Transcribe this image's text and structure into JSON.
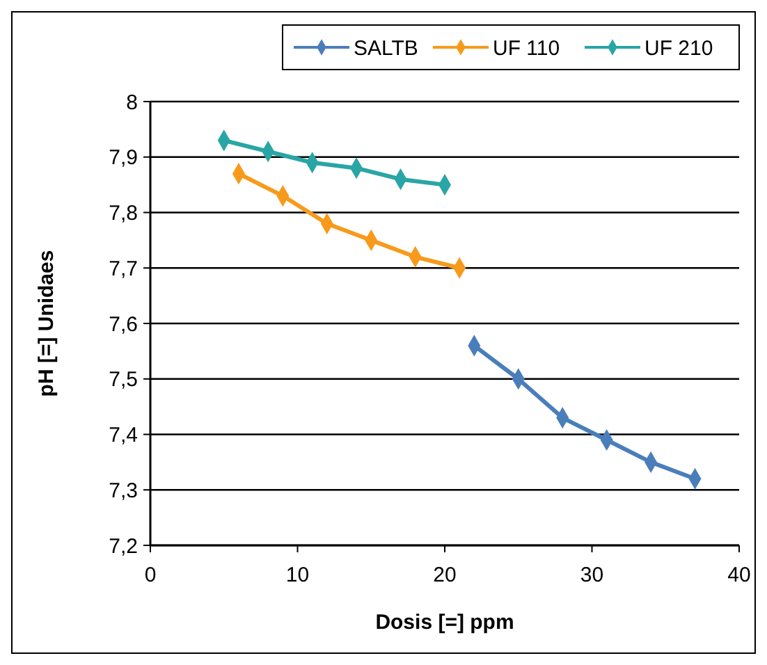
{
  "chart_data": {
    "type": "line",
    "xlabel": "Dosis [=] ppm",
    "ylabel": "pH [=] Unidaes",
    "xlim": [
      0,
      40
    ],
    "xticks": [
      0,
      10,
      20,
      30,
      40
    ],
    "ylim": [
      7.2,
      8
    ],
    "yticks": [
      {
        "value": 7.2,
        "label": "7,2"
      },
      {
        "value": 7.3,
        "label": "7,3"
      },
      {
        "value": 7.4,
        "label": "7,4"
      },
      {
        "value": 7.5,
        "label": "7,5"
      },
      {
        "value": 7.6,
        "label": "7,6"
      },
      {
        "value": 7.7,
        "label": "7,7"
      },
      {
        "value": 7.8,
        "label": "7,8"
      },
      {
        "value": 7.9,
        "label": "7,9"
      },
      {
        "value": 8,
        "label": "8"
      }
    ],
    "grid": "y",
    "legend": "top",
    "marker": "diamond",
    "line_style": "solid",
    "series": [
      {
        "name": "SALTB",
        "color": "#4a7ebb",
        "x": [
          22,
          25,
          28,
          31,
          34,
          37
        ],
        "values": [
          7.56,
          7.5,
          7.43,
          7.39,
          7.35,
          7.32
        ]
      },
      {
        "name": "UF 110",
        "color": "#f79a1b",
        "x": [
          6,
          9,
          12,
          15,
          18,
          21
        ],
        "values": [
          7.87,
          7.83,
          7.78,
          7.75,
          7.72,
          7.7
        ]
      },
      {
        "name": "UF 210",
        "color": "#2aa5a5",
        "x": [
          5,
          8,
          11,
          14,
          17,
          20
        ],
        "values": [
          7.93,
          7.91,
          7.89,
          7.88,
          7.86,
          7.85
        ]
      }
    ]
  }
}
